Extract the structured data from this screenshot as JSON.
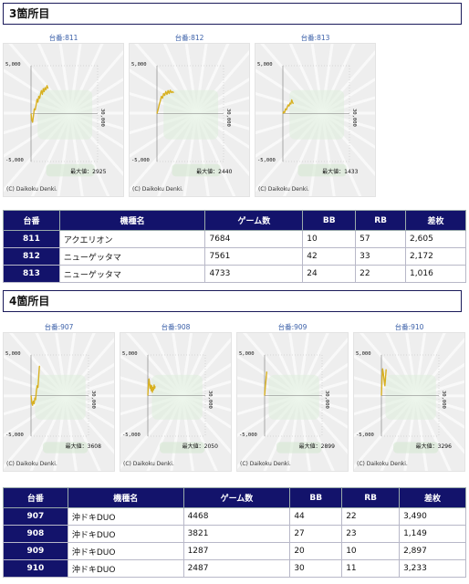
{
  "colors": {
    "header_bg": "#13136b",
    "panel_bg": "#eeeeee",
    "line": "#d8b020",
    "label_blue": "#3a5fa8"
  },
  "sections": [
    {
      "title": "3箇所目",
      "graphs": [
        {
          "label": "台番:811",
          "max_label": "最大値：2925",
          "y_top": "5,000",
          "y_bottom": "-5,000",
          "x_end": "30,000",
          "credit": "(C) Daikoku Denki.",
          "series": [
            [
              0,
              0
            ],
            [
              300,
              -600
            ],
            [
              700,
              -900
            ],
            [
              1100,
              -200
            ],
            [
              1500,
              500
            ],
            [
              1900,
              400
            ],
            [
              2300,
              900
            ],
            [
              2700,
              1500
            ],
            [
              3100,
              1200
            ],
            [
              3500,
              1800
            ],
            [
              3900,
              1600
            ],
            [
              4300,
              2100
            ],
            [
              4700,
              2400
            ],
            [
              5100,
              2000
            ],
            [
              5500,
              2600
            ],
            [
              5900,
              2300
            ],
            [
              6300,
              2700
            ],
            [
              6700,
              2500
            ],
            [
              7200,
              2925
            ],
            [
              7684,
              2605
            ]
          ]
        },
        {
          "label": "台番:812",
          "max_label": "最大値：2440",
          "y_top": "5,000",
          "y_bottom": "-5,000",
          "x_end": "30,000",
          "credit": "(C) Daikoku Denki.",
          "series": [
            [
              0,
              0
            ],
            [
              500,
              400
            ],
            [
              1000,
              900
            ],
            [
              1500,
              1300
            ],
            [
              2000,
              1800
            ],
            [
              2500,
              1600
            ],
            [
              3000,
              2100
            ],
            [
              3500,
              1900
            ],
            [
              4000,
              2300
            ],
            [
              4500,
              2000
            ],
            [
              5000,
              2400
            ],
            [
              5500,
              2100
            ],
            [
              6000,
              2440
            ],
            [
              6500,
              2200
            ],
            [
              7000,
              2300
            ],
            [
              7561,
              2172
            ]
          ]
        },
        {
          "label": "台番:813",
          "max_label": "最大値：1433",
          "y_top": "5,000",
          "y_bottom": "-5,000",
          "x_end": "30,000",
          "credit": "(C) Daikoku Denki.",
          "series": [
            [
              0,
              0
            ],
            [
              400,
              200
            ],
            [
              800,
              100
            ],
            [
              1200,
              500
            ],
            [
              1600,
              400
            ],
            [
              2000,
              700
            ],
            [
              2400,
              900
            ],
            [
              2800,
              800
            ],
            [
              3200,
              1100
            ],
            [
              3600,
              1000
            ],
            [
              4000,
              1433
            ],
            [
              4300,
              1200
            ],
            [
              4733,
              1016
            ]
          ]
        }
      ],
      "table": {
        "headers": [
          "台番",
          "機種名",
          "ゲーム数",
          "BB",
          "RB",
          "差枚"
        ],
        "rows": [
          [
            "811",
            "アクエリオン",
            "7684",
            "10",
            "57",
            "2,605"
          ],
          [
            "812",
            "ニューゲッタマ",
            "7561",
            "42",
            "33",
            "2,172"
          ],
          [
            "813",
            "ニューゲッタマ",
            "4733",
            "24",
            "22",
            "1,016"
          ]
        ]
      }
    },
    {
      "title": "4箇所目",
      "graphs": [
        {
          "label": "台番:907",
          "max_label": "最大値：3608",
          "y_top": "5,000",
          "y_bottom": "-5,000",
          "x_end": "30,000",
          "credit": "(C) Daikoku Denki.",
          "series": [
            [
              0,
              0
            ],
            [
              400,
              -800
            ],
            [
              800,
              -1200
            ],
            [
              1200,
              -700
            ],
            [
              1600,
              -1000
            ],
            [
              2000,
              -300
            ],
            [
              2400,
              -500
            ],
            [
              2800,
              600
            ],
            [
              3200,
              1200
            ],
            [
              3600,
              1000
            ],
            [
              4000,
              2300
            ],
            [
              4400,
              3608
            ],
            [
              4468,
              3490
            ]
          ]
        },
        {
          "label": "台番:908",
          "max_label": "最大値：2050",
          "y_top": "5,000",
          "y_bottom": "-5,000",
          "x_end": "30,000",
          "credit": "(C) Daikoku Denki.",
          "series": [
            [
              0,
              0
            ],
            [
              300,
              1200
            ],
            [
              600,
              2050
            ],
            [
              900,
              1500
            ],
            [
              1200,
              900
            ],
            [
              1500,
              1300
            ],
            [
              1800,
              600
            ],
            [
              2100,
              1200
            ],
            [
              2400,
              400
            ],
            [
              2700,
              1000
            ],
            [
              3000,
              700
            ],
            [
              3300,
              1300
            ],
            [
              3600,
              900
            ],
            [
              3821,
              1149
            ]
          ]
        },
        {
          "label": "台番:909",
          "max_label": "最大値：2899",
          "y_top": "5,000",
          "y_bottom": "-5,000",
          "x_end": "30,000",
          "credit": "(C) Daikoku Denki.",
          "series": [
            [
              0,
              0
            ],
            [
              300,
              900
            ],
            [
              600,
              1700
            ],
            [
              900,
              2400
            ],
            [
              1100,
              2899
            ],
            [
              1287,
              2897
            ]
          ]
        },
        {
          "label": "台番:910",
          "max_label": "最大値：3296",
          "y_top": "5,000",
          "y_bottom": "-5,000",
          "x_end": "30,000",
          "credit": "(C) Daikoku Denki.",
          "series": [
            [
              0,
              0
            ],
            [
              300,
              1800
            ],
            [
              600,
              3296
            ],
            [
              900,
              2900
            ],
            [
              1200,
              2400
            ],
            [
              1500,
              1800
            ],
            [
              1800,
              1200
            ],
            [
              2100,
              2000
            ],
            [
              2487,
              3233
            ]
          ]
        }
      ],
      "table": {
        "headers": [
          "台番",
          "機種名",
          "ゲーム数",
          "BB",
          "RB",
          "差枚"
        ],
        "rows": [
          [
            "907",
            "沖ドキDUO",
            "4468",
            "44",
            "22",
            "3,490"
          ],
          [
            "908",
            "沖ドキDUO",
            "3821",
            "27",
            "23",
            "1,149"
          ],
          [
            "909",
            "沖ドキDUO",
            "1287",
            "20",
            "10",
            "2,897"
          ],
          [
            "910",
            "沖ドキDUO",
            "2487",
            "30",
            "11",
            "3,233"
          ]
        ]
      }
    }
  ]
}
